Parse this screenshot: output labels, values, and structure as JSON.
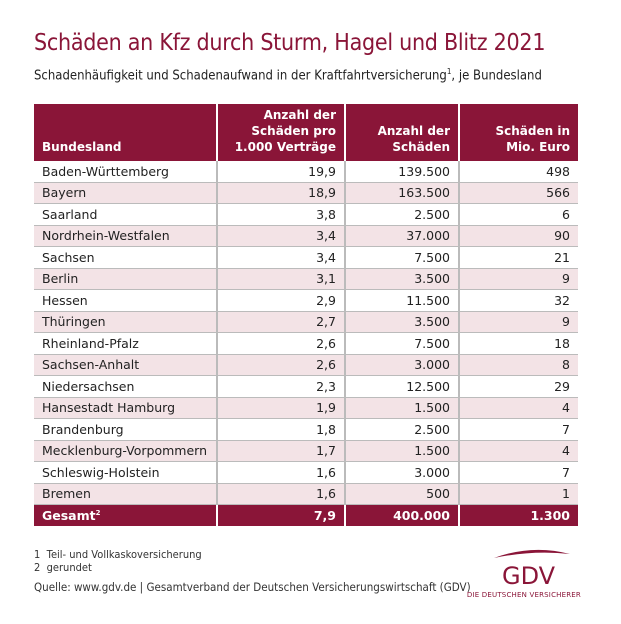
{
  "title": "Schäden an Kfz durch Sturm, Hagel und Blitz 2021",
  "subtitle": "Schadenhäufigkeit und Schadenaufwand in der Kraftfahrtversicherung",
  "subtitle_sup": "1",
  "subtitle_tail": ", je Bundesland",
  "table": {
    "headers": [
      "Bundesland",
      "Anzahl der Schäden pro 1.000 Verträge",
      "Anzahl der Schäden",
      "Schäden in Mio. Euro"
    ],
    "rows": [
      [
        "Baden-Württemberg",
        "19,9",
        "139.500",
        "498"
      ],
      [
        "Bayern",
        "18,9",
        "163.500",
        "566"
      ],
      [
        "Saarland",
        "3,8",
        "2.500",
        "6"
      ],
      [
        "Nordrhein-Westfalen",
        "3,4",
        "37.000",
        "90"
      ],
      [
        "Sachsen",
        "3,4",
        "7.500",
        "21"
      ],
      [
        "Berlin",
        "3,1",
        "3.500",
        "9"
      ],
      [
        "Hessen",
        "2,9",
        "11.500",
        "32"
      ],
      [
        "Thüringen",
        "2,7",
        "3.500",
        "9"
      ],
      [
        "Rheinland-Pfalz",
        "2,6",
        "7.500",
        "18"
      ],
      [
        "Sachsen-Anhalt",
        "2,6",
        "3.000",
        "8"
      ],
      [
        "Niedersachsen",
        "2,3",
        "12.500",
        "29"
      ],
      [
        "Hansestadt Hamburg",
        "1,9",
        "1.500",
        "4"
      ],
      [
        "Brandenburg",
        "1,8",
        "2.500",
        "7"
      ],
      [
        "Mecklenburg-Vorpommern",
        "1,7",
        "1.500",
        "4"
      ],
      [
        "Schleswig-Holstein",
        "1,6",
        "3.000",
        "7"
      ],
      [
        "Bremen",
        "1,6",
        "500",
        "1"
      ]
    ],
    "total": {
      "label": "Gesamt",
      "sup": "2",
      "values": [
        "7,9",
        "400.000",
        "1.300"
      ]
    }
  },
  "footnotes": [
    {
      "n": "1",
      "text": "Teil- und Vollkaskoversicherung"
    },
    {
      "n": "2",
      "text": "gerundet"
    }
  ],
  "source": "Quelle: www.gdv.de | Gesamtverband der Deutschen Versicherungswirtschaft (GDV)",
  "logo": {
    "text": "GDV",
    "tagline": "DIE DEUTSCHEN VERSICHERER"
  },
  "colors": {
    "brand": "#8a1538",
    "stripe": "#f3e3e6"
  }
}
